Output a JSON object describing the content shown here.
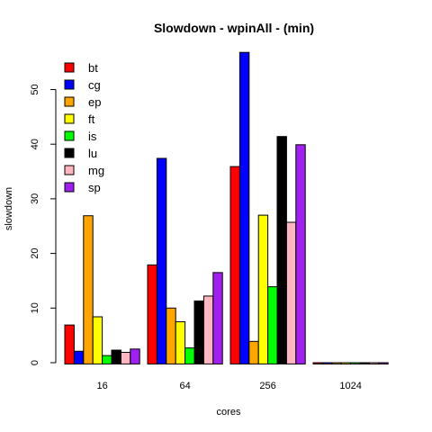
{
  "chart_data": {
    "type": "bar",
    "title": "Slowdown - wpinAll - (min)",
    "xlabel": "cores",
    "ylabel": "slowdown",
    "categories": [
      "16",
      "64",
      "256",
      "1024"
    ],
    "ylim": [
      0,
      57
    ],
    "yticks": [
      0,
      10,
      20,
      30,
      40,
      50
    ],
    "grid": false,
    "legend_position": "top-left",
    "series": [
      {
        "name": "bt",
        "color": "#ff0000",
        "values": [
          6.9,
          17.9,
          35.9,
          0
        ]
      },
      {
        "name": "cg",
        "color": "#0000ff",
        "values": [
          2.1,
          37.4,
          56.8,
          0
        ]
      },
      {
        "name": "ep",
        "color": "#ffa500",
        "values": [
          26.9,
          10.0,
          3.9,
          0
        ]
      },
      {
        "name": "ft",
        "color": "#ffff00",
        "values": [
          8.4,
          7.5,
          27.0,
          0
        ]
      },
      {
        "name": "is",
        "color": "#00ff00",
        "values": [
          1.3,
          2.7,
          13.9,
          0
        ]
      },
      {
        "name": "lu",
        "color": "#000000",
        "values": [
          2.3,
          11.3,
          41.4,
          0
        ]
      },
      {
        "name": "mg",
        "color": "#ffb6c1",
        "values": [
          1.9,
          12.2,
          25.7,
          0
        ]
      },
      {
        "name": "sp",
        "color": "#a020f0",
        "values": [
          2.5,
          16.5,
          39.9,
          0
        ]
      }
    ]
  }
}
